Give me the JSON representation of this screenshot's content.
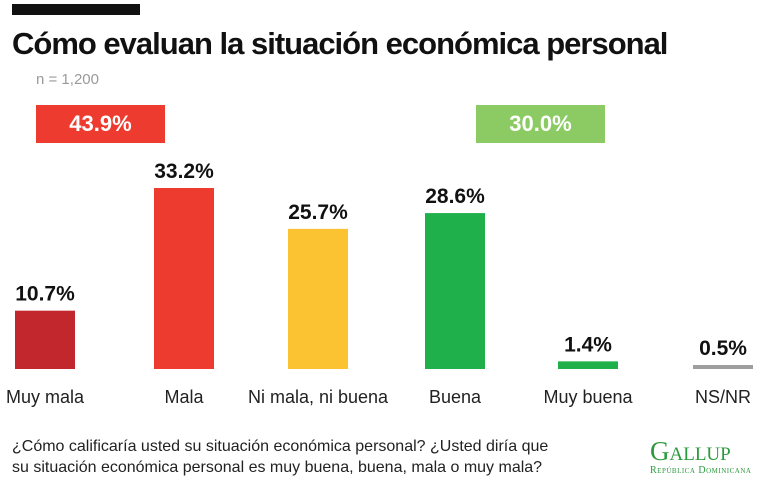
{
  "chart_data": {
    "type": "bar",
    "title": "Cómo evaluan la situación económica personal",
    "subtitle": "n = 1,200",
    "categories": [
      "Muy mala",
      "Mala",
      "Ni mala, ni buena",
      "Buena",
      "Muy buena",
      "NS/NR"
    ],
    "values": [
      10.7,
      33.2,
      25.7,
      28.6,
      1.4,
      0.5
    ],
    "value_labels": [
      "10.7%",
      "33.2%",
      "25.7%",
      "28.6%",
      "1.4%",
      "0.5%"
    ],
    "colors": [
      "#c1272d",
      "#ee3b30",
      "#fbc232",
      "#20b04b",
      "#20b04b",
      "#9e9e9e"
    ],
    "ylim": [
      0,
      33.2
    ],
    "grid": false,
    "legend": "none",
    "summaries": [
      {
        "label": "43.9%",
        "value": 43.9,
        "color": "#ee3b30"
      },
      {
        "label": "30.0%",
        "value": 30.0,
        "color": "#8ccb63"
      }
    ]
  },
  "footer": {
    "question_line1": "¿Cómo calificaría usted su situación económica personal? ¿Usted diría que",
    "question_line2": "su situación económica personal es muy buena, buena, mala o muy mala?"
  },
  "logo": {
    "main": "Gallup",
    "sub": "República Dominicana"
  }
}
